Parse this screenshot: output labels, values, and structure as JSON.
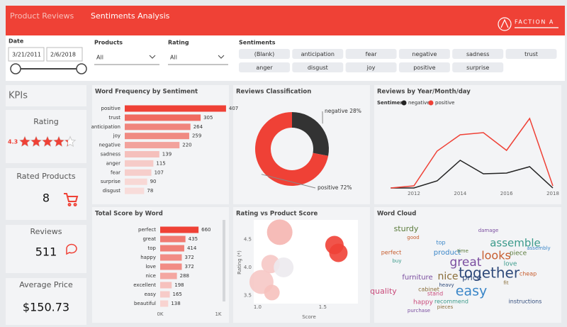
{
  "header": {
    "tabs": [
      "Product Reviews",
      "Sentiments Analysis"
    ],
    "logo": "FACTION A"
  },
  "filters": {
    "date": {
      "label": "Date",
      "start": "3/21/2011",
      "end": "2/6/2018"
    },
    "products": {
      "label": "Products",
      "value": "All"
    },
    "rating": {
      "label": "Rating",
      "value": "All"
    },
    "sentiments": {
      "label": "Sentiments",
      "options": [
        "(Blank)",
        "anticipation",
        "fear",
        "negative",
        "sadness",
        "trust",
        "anger",
        "disgust",
        "joy",
        "positive",
        "surprise"
      ]
    }
  },
  "kpis": {
    "title": "KPIs",
    "rating": {
      "label": "Rating",
      "value": 4.3
    },
    "rated_products": {
      "label": "Rated Products",
      "value": 8
    },
    "reviews": {
      "label": "Reviews",
      "value": 511
    },
    "average_price": {
      "label": "Average Price",
      "value": 150.73,
      "value_label": "$150.73"
    }
  },
  "chart_data": [
    {
      "type": "hbar",
      "title": "Word Frequency by Sentiment",
      "categories": [
        "positive",
        "trust",
        "anticipation",
        "joy",
        "negative",
        "sadness",
        "anger",
        "fear",
        "surprise",
        "disgust"
      ],
      "values": [
        407,
        305,
        264,
        259,
        220,
        139,
        115,
        107,
        90,
        78
      ],
      "colors": [
        "#ef4136",
        "#f06a60",
        "#f0857d",
        "#f08a82",
        "#f2a29c",
        "#f5c0bc",
        "#f6cbc8",
        "#f6cecb",
        "#f8d8d5",
        "#f8dcda"
      ],
      "xlim": [
        0,
        450
      ]
    },
    {
      "type": "donut",
      "title": "Reviews Classification",
      "categories": [
        "negative",
        "positive"
      ],
      "values": [
        28,
        72
      ],
      "value_labels": [
        "28%",
        "72%"
      ],
      "colors": [
        "#333333",
        "#ef4136"
      ]
    },
    {
      "type": "line",
      "title": "Reviews by Year/Month/day",
      "legend_title": "Sentiment",
      "x": [
        2011,
        2012,
        2013,
        2014,
        2015,
        2016,
        2017,
        2018
      ],
      "xlim": [
        2010.5,
        2018
      ],
      "xticks": [
        2012,
        2014,
        2016,
        2018
      ],
      "ylim": [
        0,
        100
      ],
      "series": [
        {
          "name": "negative",
          "color": "#222222",
          "values": [
            0,
            0,
            10,
            39,
            20,
            21,
            30,
            0
          ]
        },
        {
          "name": "positive",
          "color": "#ef4136",
          "values": [
            0,
            3,
            52,
            75,
            78,
            53,
            98,
            3
          ]
        }
      ]
    },
    {
      "type": "hbar",
      "title": "Total Score by Word",
      "categories": [
        "perfect",
        "great",
        "top",
        "happy",
        "love",
        "nice",
        "excellent",
        "easy",
        "beautiful"
      ],
      "values": [
        660,
        435,
        414,
        372,
        372,
        288,
        198,
        165,
        138
      ],
      "colors": [
        "#ef4136",
        "#f07a72",
        "#f07f77",
        "#f28c85",
        "#f28c85",
        "#f4a7a1",
        "#f6c1bd",
        "#f7cbc8",
        "#f8d3d0"
      ],
      "xlim": [
        0,
        1000
      ],
      "xticks": [
        {
          "value": 0,
          "label": "0K"
        },
        {
          "value": 1000,
          "label": "1K"
        }
      ]
    },
    {
      "type": "scatter",
      "title": "Rating vs Product Score",
      "x_label": "Score",
      "y_label": "Rating (*)",
      "x": [
        1.17,
        1.1,
        1.2,
        1.03,
        1.11,
        1.59,
        1.62
      ],
      "y": [
        4.63,
        4.06,
        4.0,
        3.74,
        3.55,
        4.4,
        4.26
      ],
      "sizes": [
        18,
        13,
        14,
        17,
        11,
        13,
        13
      ],
      "colors": [
        "#f5b5b0",
        "#f6c8c5",
        "#eceaee",
        "#f6c8c5",
        "#f6c1bd",
        "#ef4136",
        "#ef4136"
      ],
      "xlim": [
        0.9,
        1.77
      ],
      "ylim": [
        3.2,
        4.85
      ],
      "xticks": [
        {
          "value": 1,
          "label": "1.0"
        },
        1.5
      ],
      "yticks": [
        3.5,
        {
          "value": 4,
          "label": "4.0"
        },
        4.5
      ]
    }
  ],
  "word_cloud": {
    "title": "Word Cloud",
    "words": [
      "together",
      "easy",
      "great",
      "looks",
      "assemble",
      "nice",
      "quality",
      "sturdy",
      "price",
      "product",
      "furniture",
      "perfect",
      "love",
      "cabinet",
      "happy",
      "piece",
      "instructions",
      "top",
      "damage",
      "cheap",
      "recommend",
      "pieces",
      "stand",
      "time",
      "heavy",
      "assembly",
      "purchase",
      "good",
      "buy",
      "fit"
    ]
  }
}
